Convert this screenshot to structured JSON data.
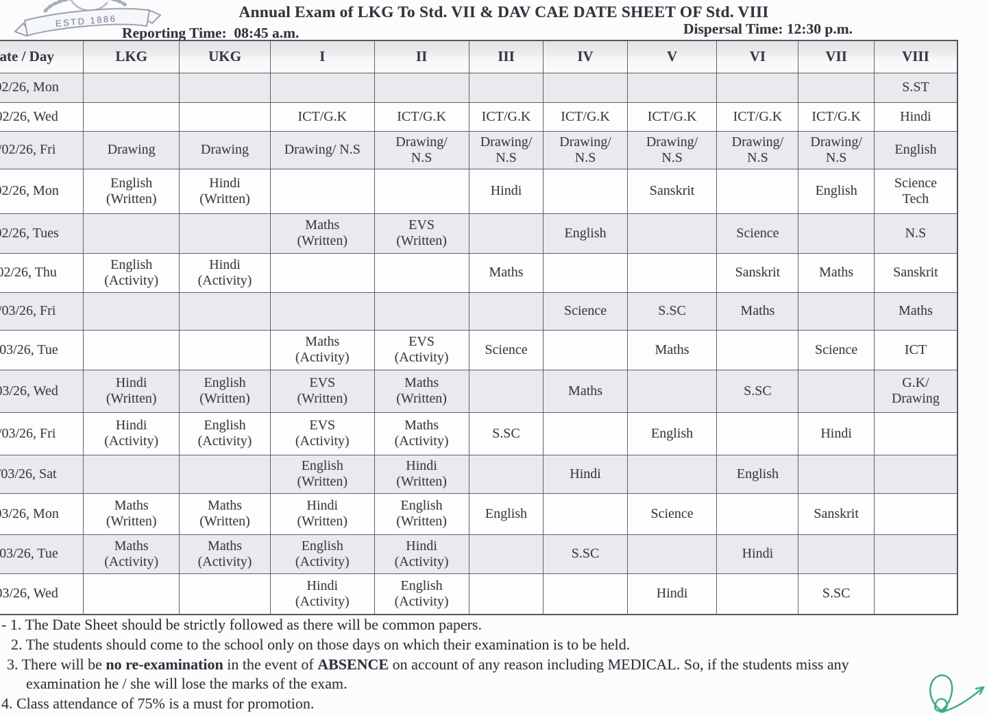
{
  "document": {
    "logo_banner": "ESTD 1886",
    "title": "Annual Exam of LKG To Std. VII & DAV CAE DATE SHEET OF Std. VIII",
    "reporting_time": "Reporting Time:  08:45 a.m.",
    "dispersal_time": "Dispersal Time: 12:30 p.m."
  },
  "table": {
    "header": [
      "ate / Day",
      "LKG",
      "UKG",
      "I",
      "II",
      "III",
      "IV",
      "V",
      "VI",
      "VII",
      "VIII"
    ],
    "column_keys": [
      "date-day",
      "lkg",
      "ukg",
      "i",
      "ii",
      "iii",
      "iv",
      "v",
      "vi",
      "vii",
      "viii"
    ],
    "rows": [
      {
        "date": "02/26, Mon",
        "cells": [
          "",
          "",
          "",
          "",
          "",
          "",
          "",
          "",
          "",
          "S.ST"
        ]
      },
      {
        "date": "02/26, Wed",
        "cells": [
          "",
          "",
          "ICT/G.K",
          "ICT/G.K",
          "ICT/G.K",
          "ICT/G.K",
          "ICT/G.K",
          "ICT/G.K",
          "ICT/G.K",
          "Hindi"
        ]
      },
      {
        "date": "/02/26, Fri",
        "cells": [
          "Drawing",
          "Drawing",
          "Drawing/ N.S",
          "Drawing/\nN.S",
          "Drawing/\nN.S",
          "Drawing/\nN.S",
          "Drawing/\nN.S",
          "Drawing/\nN.S",
          "Drawing/\nN.S",
          "English"
        ]
      },
      {
        "date": "02/26, Mon",
        "cells": [
          "English\n(Written)",
          "Hindi\n(Written)",
          "",
          "",
          "Hindi",
          "",
          "Sanskrit",
          "",
          "English",
          "Science\nTech"
        ]
      },
      {
        "date": "02/26, Tues",
        "cells": [
          "",
          "",
          "Maths\n(Written)",
          "EVS\n(Written)",
          "",
          "English",
          "",
          "Science",
          "",
          "N.S"
        ]
      },
      {
        "date": "02/26, Thu",
        "cells": [
          "English\n(Activity)",
          "Hindi\n(Activity)",
          "",
          "",
          "Maths",
          "",
          "",
          "Sanskrit",
          "Maths",
          "Sanskrit"
        ]
      },
      {
        "date": "/03/26, Fri",
        "cells": [
          "",
          "",
          "",
          "",
          "",
          "Science",
          "S.SC",
          "Maths",
          "",
          "Maths"
        ]
      },
      {
        "date": "/03/26, Tue",
        "cells": [
          "",
          "",
          "Maths\n(Activity)",
          "EVS\n(Activity)",
          "Science",
          "",
          "Maths",
          "",
          "Science",
          "ICT"
        ]
      },
      {
        "date": "03/26, Wed",
        "cells": [
          "Hindi\n(Written)",
          "English\n(Written)",
          "EVS\n(Written)",
          "Maths\n(Written)",
          "",
          "Maths",
          "",
          "S.SC",
          "",
          "G.K/\nDrawing"
        ]
      },
      {
        "date": "/03/26, Fri",
        "cells": [
          "Hindi\n(Activity)",
          "English\n(Activity)",
          "EVS\n(Activity)",
          "Maths\n(Activity)",
          "S.SC",
          "",
          "English",
          "",
          "Hindi",
          ""
        ]
      },
      {
        "date": "/03/26, Sat",
        "cells": [
          "",
          "",
          "English\n(Written)",
          "Hindi\n(Written)",
          "",
          "Hindi",
          "",
          "English",
          "",
          ""
        ]
      },
      {
        "date": "03/26, Mon",
        "cells": [
          "Maths\n(Written)",
          "Maths\n(Written)",
          "Hindi\n(Written)",
          "English\n(Written)",
          "English",
          "",
          "Science",
          "",
          "Sanskrit",
          ""
        ]
      },
      {
        "date": "/03/26, Tue",
        "cells": [
          "Maths\n(Activity)",
          "Maths\n(Activity)",
          "English\n(Activity)",
          "Hindi\n(Activity)",
          "",
          "S.SC",
          "",
          "Hindi",
          "",
          ""
        ]
      },
      {
        "date": "03/26, Wed",
        "cells": [
          "",
          "",
          "Hindi\n(Activity)",
          "English\n(Activity)",
          "",
          "",
          "Hindi",
          "",
          "S.SC",
          ""
        ]
      }
    ]
  },
  "notes": {
    "lines": [
      {
        "lead": "- ",
        "num": "1.",
        "segments": [
          {
            "t": "The Date Sheet should be strictly followed as there will be common papers."
          }
        ]
      },
      {
        "num": "2.",
        "segments": [
          {
            "t": "The students should come to the school only on those days on which their examination is to be held."
          }
        ]
      },
      {
        "num": "3.",
        "segments": [
          {
            "t": "There will be "
          },
          {
            "t": "no re-examination",
            "b": true
          },
          {
            "t": " in the event of "
          },
          {
            "t": "ABSENCE",
            "b": true
          },
          {
            "t": " on account of any reason including MEDICAL. So, if the students miss any"
          }
        ]
      },
      {
        "segments": [
          {
            "t": "examination he / she will lose the marks of the exam."
          }
        ]
      },
      {
        "num": "4.",
        "segments": [
          {
            "t": "Class attendance of 75% is a must for promotion."
          }
        ]
      }
    ]
  },
  "signature": {
    "ink_color": "#3fae7c"
  }
}
